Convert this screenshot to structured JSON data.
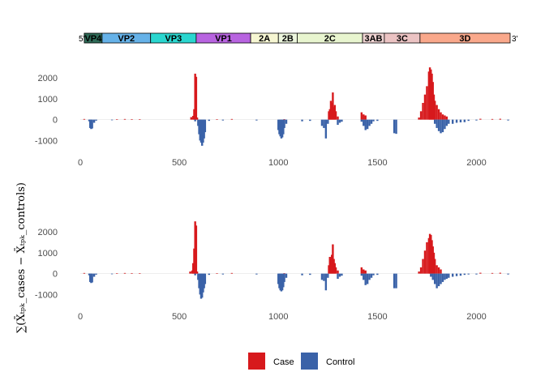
{
  "genome_map": {
    "five_prime_label": "5'",
    "three_prime_label": "3'",
    "segments": [
      {
        "name": "VP4",
        "start": 20,
        "end": 110,
        "color": "#2f6b58"
      },
      {
        "name": "VP2",
        "start": 110,
        "end": 355,
        "color": "#66b2e8"
      },
      {
        "name": "VP3",
        "start": 355,
        "end": 585,
        "color": "#2ad6cf"
      },
      {
        "name": "VP1",
        "start": 585,
        "end": 860,
        "color": "#b864e0"
      },
      {
        "name": "2A",
        "start": 860,
        "end": 1000,
        "color": "#f6f6d2"
      },
      {
        "name": "2B",
        "start": 1000,
        "end": 1095,
        "color": "#ecf6dd"
      },
      {
        "name": "2C",
        "start": 1095,
        "end": 1425,
        "color": "#e8f5cf"
      },
      {
        "name": "3AB",
        "start": 1425,
        "end": 1535,
        "color": "#eed2d1"
      },
      {
        "name": "3C",
        "start": 1535,
        "end": 1715,
        "color": "#ebc3c3"
      },
      {
        "name": "3D",
        "start": 1715,
        "end": 2170,
        "color": "#f9a88b"
      }
    ]
  },
  "y_axis_title": "∑(X̄ₜₚₖ_cases − X̄ₜₚₖ_controls)",
  "legend": {
    "items": [
      {
        "label": "Case",
        "color": "#d7191c"
      },
      {
        "label": "Control",
        "color": "#3a62a8"
      }
    ]
  },
  "chart_data": [
    {
      "type": "bar",
      "xlim": [
        0,
        2170
      ],
      "ylim": [
        -1450,
        2700
      ],
      "x_ticks": [
        0,
        500,
        1000,
        1500,
        2000
      ],
      "y_ticks": [
        -1000,
        0,
        1000,
        2000
      ],
      "series": [
        {
          "name": "Case",
          "color": "#d7191c",
          "x": [
            20,
            185,
            225,
            260,
            300,
            560,
            570,
            575,
            580,
            585,
            590,
            690,
            765,
            1030,
            1255,
            1260,
            1265,
            1270,
            1275,
            1280,
            1285,
            1290,
            1300,
            1420,
            1430,
            1440,
            1710,
            1720,
            1730,
            1740,
            1750,
            1760,
            1765,
            1770,
            1775,
            1780,
            1785,
            1790,
            1800,
            1810,
            1820,
            1830,
            1840,
            1850,
            2020,
            2080,
            2120
          ],
          "y": [
            30,
            20,
            30,
            25,
            20,
            120,
            180,
            500,
            2200,
            2050,
            100,
            20,
            30,
            20,
            400,
            500,
            900,
            800,
            1300,
            600,
            700,
            400,
            150,
            350,
            250,
            200,
            100,
            400,
            800,
            1200,
            1600,
            2300,
            2500,
            2400,
            2200,
            1800,
            1200,
            900,
            700,
            500,
            350,
            250,
            200,
            150,
            40,
            30,
            40
          ]
        },
        {
          "name": "Control",
          "color": "#3a62a8",
          "x": [
            45,
            50,
            55,
            60,
            70,
            80,
            160,
            580,
            595,
            600,
            605,
            610,
            615,
            620,
            625,
            630,
            650,
            720,
            890,
            1000,
            1005,
            1010,
            1015,
            1020,
            1025,
            1030,
            1040,
            1120,
            1160,
            1220,
            1230,
            1240,
            1250,
            1300,
            1310,
            1320,
            1420,
            1430,
            1440,
            1450,
            1460,
            1470,
            1480,
            1500,
            1585,
            1595,
            1790,
            1800,
            1810,
            1820,
            1830,
            1840,
            1850,
            1860,
            1880,
            1900,
            1920,
            1940,
            1960,
            2000,
            2160
          ],
          "y": [
            -80,
            -400,
            -450,
            -420,
            -150,
            -50,
            -30,
            -80,
            -300,
            -700,
            -1000,
            -1100,
            -1250,
            -1100,
            -900,
            -600,
            -60,
            -40,
            -40,
            -500,
            -700,
            -800,
            -900,
            -850,
            -700,
            -400,
            -200,
            -80,
            -60,
            -300,
            -400,
            -900,
            -200,
            -250,
            -150,
            -100,
            -100,
            -300,
            -500,
            -450,
            -300,
            -200,
            -80,
            -60,
            -650,
            -680,
            -200,
            -400,
            -550,
            -650,
            -600,
            -450,
            -300,
            -200,
            -200,
            -150,
            -130,
            -120,
            -60,
            -40,
            -40
          ]
        }
      ]
    },
    {
      "type": "bar",
      "xlim": [
        0,
        2170
      ],
      "ylim": [
        -1450,
        2700
      ],
      "x_ticks": [
        0,
        500,
        1000,
        1500,
        2000
      ],
      "y_ticks": [
        -1000,
        0,
        1000,
        2000
      ],
      "series": [
        {
          "name": "Case",
          "color": "#d7191c",
          "x": [
            20,
            185,
            225,
            260,
            300,
            555,
            565,
            570,
            575,
            580,
            585,
            590,
            690,
            765,
            1030,
            1255,
            1260,
            1265,
            1270,
            1275,
            1280,
            1285,
            1290,
            1300,
            1420,
            1430,
            1440,
            1710,
            1720,
            1730,
            1740,
            1750,
            1760,
            1765,
            1770,
            1775,
            1780,
            1785,
            1790,
            1800,
            1810,
            1820,
            2020,
            2080,
            2120
          ],
          "y": [
            30,
            20,
            30,
            25,
            20,
            100,
            150,
            500,
            1200,
            2500,
            2300,
            100,
            20,
            30,
            20,
            400,
            800,
            700,
            900,
            1400,
            700,
            500,
            300,
            150,
            300,
            200,
            150,
            100,
            300,
            700,
            1100,
            1500,
            1700,
            1900,
            1850,
            1600,
            1300,
            1000,
            700,
            400,
            300,
            200,
            40,
            30,
            40
          ]
        },
        {
          "name": "Control",
          "color": "#3a62a8",
          "x": [
            45,
            50,
            55,
            60,
            70,
            80,
            160,
            580,
            595,
            600,
            605,
            610,
            615,
            620,
            625,
            630,
            650,
            720,
            890,
            1000,
            1005,
            1010,
            1015,
            1020,
            1025,
            1030,
            1040,
            1120,
            1160,
            1220,
            1230,
            1240,
            1250,
            1300,
            1310,
            1320,
            1420,
            1430,
            1440,
            1450,
            1460,
            1470,
            1480,
            1500,
            1585,
            1595,
            1770,
            1780,
            1790,
            1800,
            1810,
            1820,
            1830,
            1840,
            1850,
            1860,
            1880,
            1900,
            1920,
            1940,
            1960,
            2000,
            2160
          ],
          "y": [
            -80,
            -400,
            -450,
            -420,
            -150,
            -50,
            -30,
            -80,
            -300,
            -700,
            -1000,
            -1200,
            -1150,
            -900,
            -700,
            -500,
            -60,
            -40,
            -40,
            -500,
            -700,
            -800,
            -850,
            -800,
            -650,
            -400,
            -200,
            -80,
            -60,
            -300,
            -350,
            -800,
            -200,
            -250,
            -150,
            -100,
            -100,
            -300,
            -550,
            -500,
            -300,
            -200,
            -80,
            -60,
            -700,
            -700,
            -150,
            -300,
            -500,
            -700,
            -600,
            -500,
            -400,
            -300,
            -250,
            -200,
            -150,
            -120,
            -100,
            -60,
            -40,
            -40,
            -40
          ]
        }
      ]
    }
  ]
}
